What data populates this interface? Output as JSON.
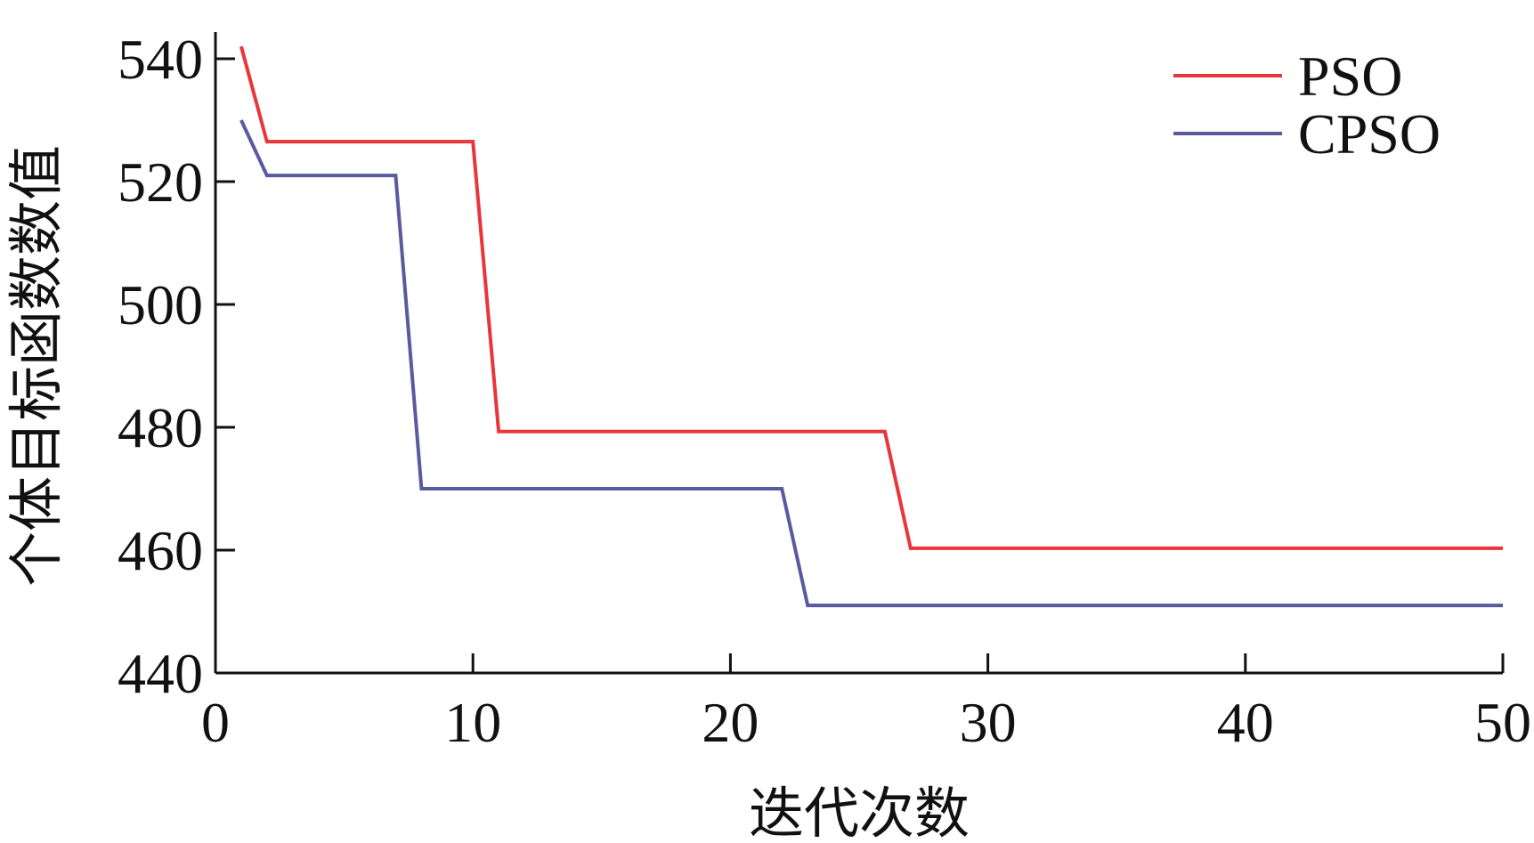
{
  "chart_data": {
    "type": "line",
    "title": "",
    "xlabel": "迭代次数",
    "ylabel": "个体目标函数数值",
    "xlim": [
      0,
      50
    ],
    "ylim": [
      440,
      540
    ],
    "xticks": [
      0,
      10,
      20,
      30,
      40,
      50
    ],
    "yticks": [
      440,
      460,
      480,
      500,
      520,
      540
    ],
    "grid": false,
    "legend_position": "top-right",
    "series": [
      {
        "name": "PSO",
        "color": "#e8363a",
        "points": [
          [
            1,
            542
          ],
          [
            2,
            526.5
          ],
          [
            10,
            526.5
          ],
          [
            11,
            479.3
          ],
          [
            26,
            479.3
          ],
          [
            27,
            460.3
          ],
          [
            50,
            460.3
          ]
        ]
      },
      {
        "name": "CPSO",
        "color": "#5a5a9e",
        "points": [
          [
            1,
            530
          ],
          [
            2,
            521
          ],
          [
            7,
            521
          ],
          [
            8,
            470
          ],
          [
            22,
            470
          ],
          [
            23,
            451
          ],
          [
            50,
            451
          ]
        ]
      }
    ]
  }
}
